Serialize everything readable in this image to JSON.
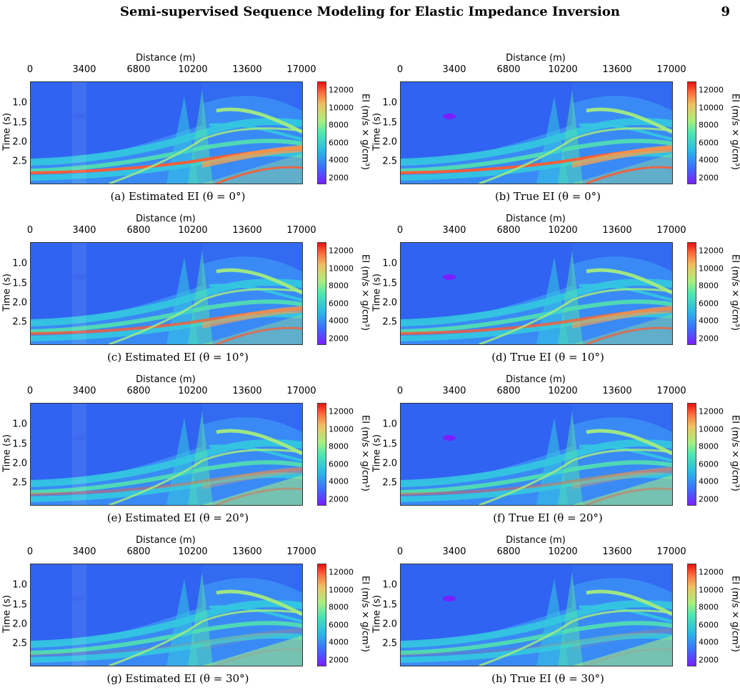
{
  "header": {
    "title": "Semi-supervised Sequence Modeling for Elastic Impedance Inversion",
    "page_number": "9"
  },
  "axes": {
    "x_label": "Distance (m)",
    "x_ticks": [
      "0",
      "3400",
      "6800",
      "10200",
      "13600",
      "17000"
    ],
    "y_label": "Time (s)",
    "y_ticks": [
      "1.0",
      "1.5",
      "2.0",
      "2.5"
    ],
    "colorbar_ticks": [
      "12000",
      "10000",
      "8000",
      "6000",
      "4000",
      "2000"
    ],
    "colorbar_label": "EI (m/s × g/cm³)"
  },
  "panels": [
    {
      "caption": "(a) Estimated EI (θ = 0°)"
    },
    {
      "caption": "(b) True EI (θ = 0°)"
    },
    {
      "caption": "(c) Estimated EI (θ = 10°)"
    },
    {
      "caption": "(d) True EI (θ = 10°)"
    },
    {
      "caption": "(e) Estimated EI (θ = 20°)"
    },
    {
      "caption": "(f) True EI (θ = 20°)"
    },
    {
      "caption": "(g) Estimated EI (θ = 30°)"
    },
    {
      "caption": "(h) True EI (θ = 30°)"
    }
  ],
  "colors": {
    "deep_blue": "#2f5cf0",
    "mid_blue": "#3a8af5",
    "cyan": "#34c8e0",
    "teal_green": "#52e0b0",
    "green": "#a8f07a",
    "orange": "#f5a050",
    "red": "#ff5a30",
    "purple": "#7a1fff"
  }
}
